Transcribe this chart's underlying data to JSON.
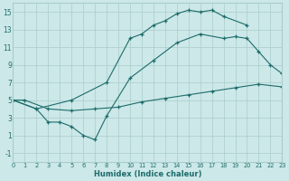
{
  "bg_color": "#cce8e8",
  "grid_color": "#aacccc",
  "line_color": "#1e6b6b",
  "xlabel": "Humidex (Indice chaleur)",
  "ylim": [
    -2,
    16
  ],
  "xlim": [
    0,
    23
  ],
  "yticks": [
    -1,
    1,
    3,
    5,
    7,
    9,
    11,
    13,
    15
  ],
  "xticks": [
    0,
    1,
    2,
    3,
    4,
    5,
    6,
    7,
    8,
    9,
    10,
    11,
    12,
    13,
    14,
    15,
    16,
    17,
    18,
    19,
    20,
    21,
    22,
    23
  ],
  "line1_x": [
    0,
    2,
    5,
    8,
    10,
    11,
    12,
    13,
    14,
    15,
    16,
    17,
    18,
    20
  ],
  "line1_y": [
    5,
    4,
    5,
    7,
    12,
    12.5,
    13.5,
    14,
    14.8,
    15.2,
    15.0,
    15.2,
    14.5,
    13.5
  ],
  "line2_x": [
    0,
    2,
    3,
    4,
    5,
    6,
    7,
    8,
    10,
    12,
    14,
    16,
    18,
    19,
    20,
    21,
    22,
    23
  ],
  "line2_y": [
    5,
    4,
    2.5,
    2.5,
    2.0,
    1.0,
    0.5,
    3.2,
    7.5,
    9.5,
    11.5,
    12.5,
    12.0,
    12.2,
    12.0,
    10.5,
    9.0,
    8.0
  ],
  "line3_x": [
    0,
    1,
    3,
    5,
    7,
    9,
    11,
    13,
    15,
    17,
    19,
    21,
    23
  ],
  "line3_y": [
    5.0,
    5.0,
    4.0,
    3.8,
    4.0,
    4.2,
    4.8,
    5.2,
    5.6,
    6.0,
    6.4,
    6.8,
    6.5
  ],
  "line4_x": [
    3,
    4,
    5,
    6,
    7,
    8
  ],
  "line4_y": [
    2.5,
    2.5,
    2.0,
    1.0,
    0.5,
    3.2
  ]
}
